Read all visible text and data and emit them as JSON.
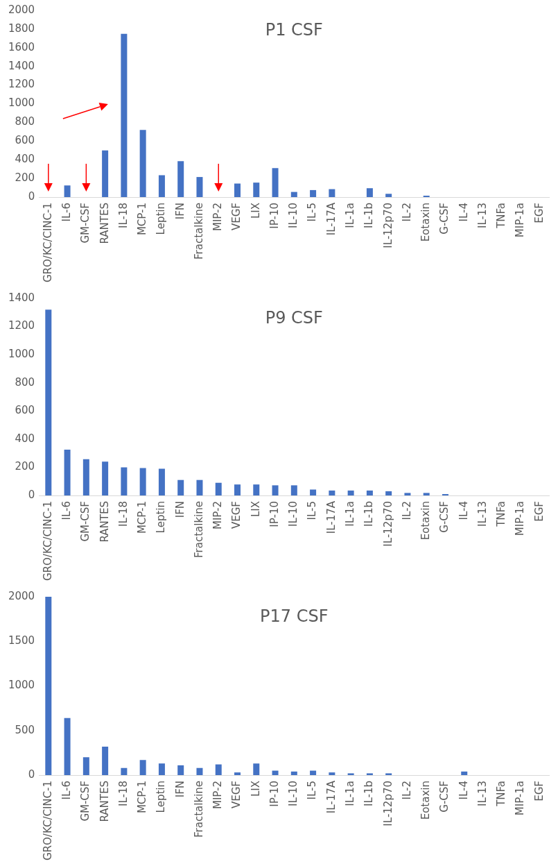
{
  "chart_data": [
    {
      "type": "bar",
      "title": "P1 CSF",
      "categories": [
        "GRO/KC/CINC-1",
        "IL-6",
        "GM-CSF",
        "RANTES",
        "IL-18",
        "MCP-1",
        "Leptin",
        "IFN",
        "Fractalkine",
        "MIP-2",
        "VEGF",
        "LIX",
        "IP-10",
        "IL-10",
        "IL-5",
        "IL-17A",
        "IL-1a",
        "IL-1b",
        "IL-12p70",
        "IL-2",
        "Eotaxin",
        "G-CSF",
        "IL-4",
        "IL-13",
        "TNFa",
        "MIP-1a",
        "EGF"
      ],
      "values": [
        0,
        125,
        0,
        500,
        1750,
        720,
        235,
        385,
        215,
        0,
        145,
        155,
        310,
        55,
        75,
        85,
        0,
        95,
        35,
        0,
        15,
        0,
        0,
        0,
        0,
        0,
        0
      ],
      "color": "#4472c4",
      "ylim": [
        0,
        2000
      ],
      "yticks": [
        0,
        200,
        400,
        600,
        800,
        1000,
        1200,
        1400,
        1600,
        1800,
        2000
      ],
      "grid": false
    },
    {
      "type": "bar",
      "title": "P9 CSF",
      "categories": [
        "GRO/KC/CINC-1",
        "IL-6",
        "GM-CSF",
        "RANTES",
        "IL-18",
        "MCP-1",
        "Leptin",
        "IFN",
        "Fractalkine",
        "MIP-2",
        "VEGF",
        "LIX",
        "IP-10",
        "IL-10",
        "IL-5",
        "IL-17A",
        "IL-1a",
        "IL-1b",
        "IL-12p70",
        "IL-2",
        "Eotaxin",
        "G-CSF",
        "IL-4",
        "IL-13",
        "TNFa",
        "MIP-1a",
        "EGF"
      ],
      "values": [
        1320,
        325,
        258,
        240,
        200,
        195,
        190,
        110,
        110,
        90,
        78,
        78,
        72,
        72,
        42,
        35,
        35,
        35,
        30,
        18,
        18,
        10,
        0,
        0,
        0,
        0,
        0
      ],
      "color": "#4472c4",
      "ylim": [
        0,
        1400
      ],
      "yticks": [
        0,
        200,
        400,
        600,
        800,
        1000,
        1200,
        1400
      ],
      "grid": false
    },
    {
      "type": "bar",
      "title": "P17 CSF",
      "categories": [
        "GRO/KC/CINC-1",
        "IL-6",
        "GM-CSF",
        "RANTES",
        "IL-18",
        "MCP-1",
        "Leptin",
        "IFN",
        "Fractalkine",
        "MIP-2",
        "VEGF",
        "LIX",
        "IP-10",
        "IL-10",
        "IL-5",
        "IL-17A",
        "IL-1a",
        "IL-1b",
        "IL-12p70",
        "IL-2",
        "Eotaxin",
        "G-CSF",
        "IL-4",
        "IL-13",
        "TNFa",
        "MIP-1a",
        "EGF"
      ],
      "values": [
        2000,
        640,
        200,
        320,
        80,
        170,
        130,
        110,
        80,
        120,
        30,
        130,
        50,
        40,
        50,
        30,
        20,
        20,
        20,
        0,
        0,
        0,
        40,
        0,
        0,
        0,
        0
      ],
      "color": "#4472c4",
      "ylim": [
        0,
        2000
      ],
      "yticks": [
        0,
        500,
        1000,
        1500,
        2000
      ],
      "grid": false
    }
  ]
}
